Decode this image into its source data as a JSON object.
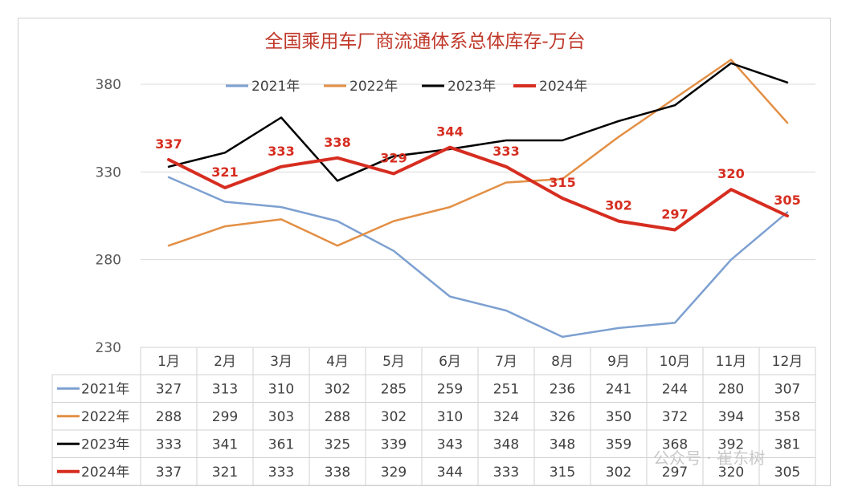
{
  "chart_data": {
    "type": "line",
    "title": "全国乘用车厂商流通体系总体库存-万台",
    "categories": [
      "1月",
      "2月",
      "3月",
      "4月",
      "5月",
      "6月",
      "7月",
      "8月",
      "9月",
      "10月",
      "11月",
      "12月"
    ],
    "yticks": [
      "380",
      "330",
      "280",
      "230"
    ],
    "ylim": [
      230,
      395
    ],
    "grid": true,
    "legend_position": "top",
    "series": [
      {
        "name": "2021年",
        "color": "#7da0d1",
        "values": [
          327,
          313,
          310,
          302,
          285,
          259,
          251,
          236,
          241,
          244,
          280,
          307
        ]
      },
      {
        "name": "2022年",
        "color": "#e38f45",
        "values": [
          288,
          299,
          303,
          288,
          302,
          310,
          324,
          326,
          350,
          372,
          394,
          358
        ]
      },
      {
        "name": "2023年",
        "color": "#000000",
        "values": [
          333,
          341,
          361,
          325,
          339,
          343,
          348,
          348,
          359,
          368,
          392,
          381
        ]
      },
      {
        "name": "2024年",
        "color": "#d62d20",
        "values": [
          337,
          321,
          333,
          338,
          329,
          344,
          333,
          315,
          302,
          297,
          320,
          305
        ],
        "data_labels": true
      }
    ],
    "watermark": "公众号 · 崔东树"
  }
}
